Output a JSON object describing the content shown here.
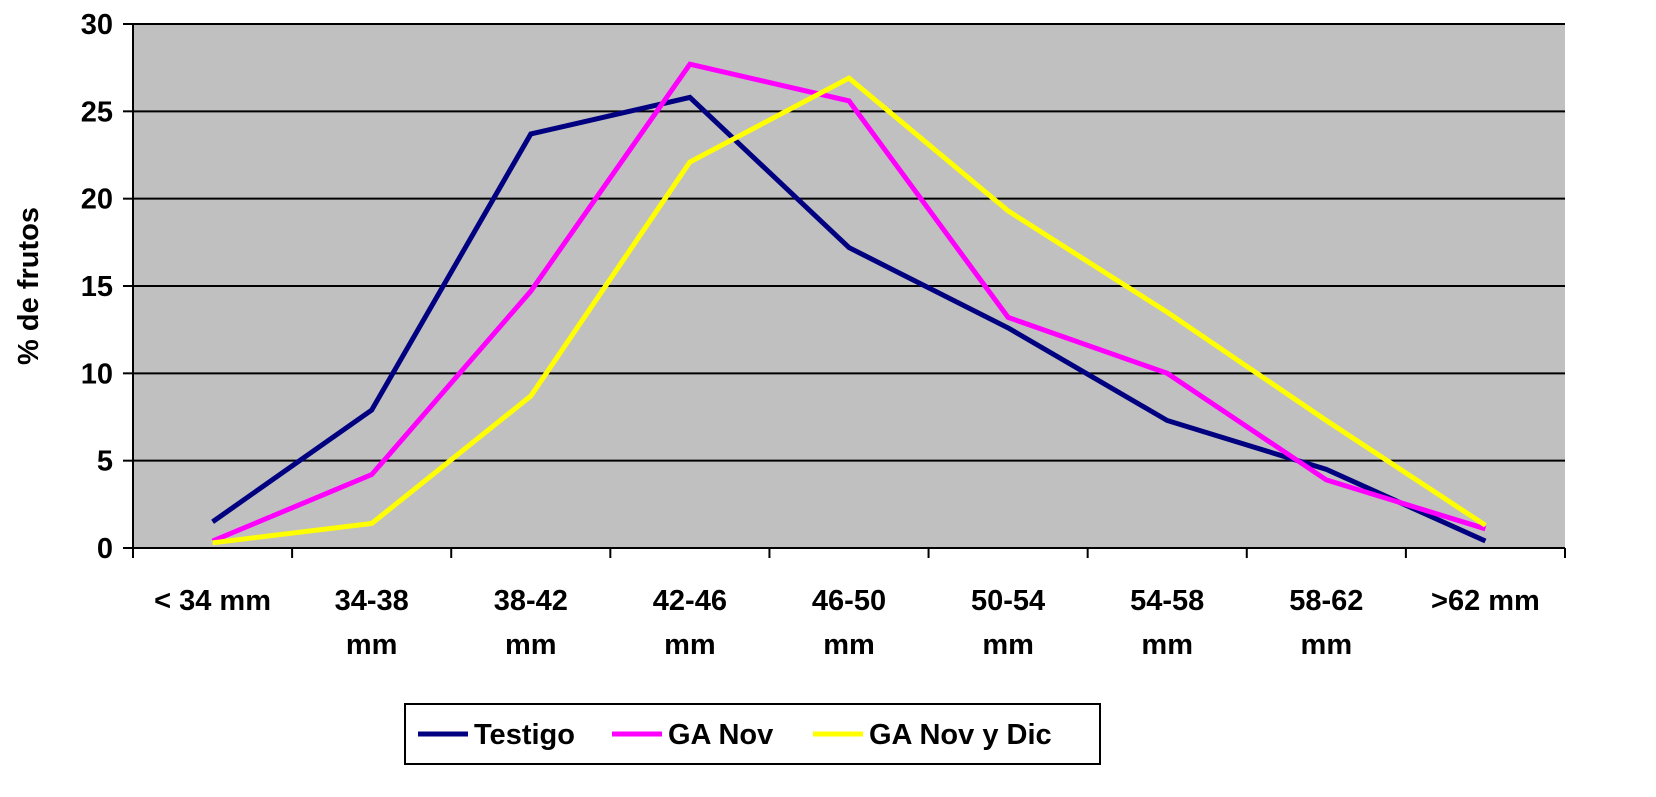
{
  "chart_data": {
    "type": "line",
    "title": "",
    "xlabel": "",
    "ylabel": "% de frutos",
    "ylim": [
      0,
      30
    ],
    "yticks": [
      0,
      5,
      10,
      15,
      20,
      25,
      30
    ],
    "grid": true,
    "legend_position": "bottom",
    "plot_background": "#C0C0C0",
    "categories": [
      [
        "<  34 mm"
      ],
      [
        "34-38",
        "mm"
      ],
      [
        "38-42",
        "mm"
      ],
      [
        "42-46",
        "mm"
      ],
      [
        "46-50",
        "mm"
      ],
      [
        "50-54",
        "mm"
      ],
      [
        "54-58",
        "mm"
      ],
      [
        "58-62",
        "mm"
      ],
      [
        ">62 mm"
      ]
    ],
    "series": [
      {
        "name": "Testigo",
        "color": "#000080",
        "values": [
          1.5,
          7.9,
          23.7,
          25.8,
          17.2,
          12.6,
          7.3,
          4.5,
          0.4
        ]
      },
      {
        "name": "GA Nov",
        "color": "#FF00FF",
        "values": [
          0.4,
          4.2,
          14.7,
          27.7,
          25.6,
          13.2,
          10.0,
          3.9,
          1.1
        ]
      },
      {
        "name": "GA Nov y Dic",
        "color": "#FFFF00",
        "values": [
          0.3,
          1.4,
          8.7,
          22.1,
          26.9,
          19.3,
          13.5,
          7.3,
          1.3
        ]
      }
    ]
  }
}
